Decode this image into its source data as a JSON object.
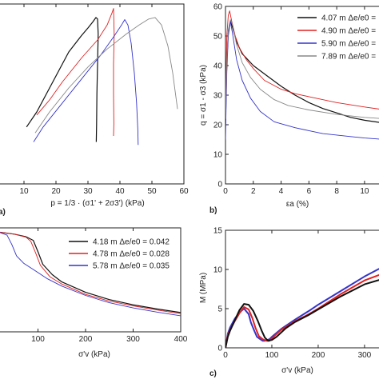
{
  "chart_data": [
    {
      "id": "a",
      "type": "line",
      "panel_label": "a)",
      "xlabel": "p = 1/3 · (σ1' + 2σ3') (kPa)",
      "ylabel": "",
      "xticks": [
        10,
        20,
        30,
        40,
        50,
        60
      ],
      "yticks": [],
      "xlim": [
        0,
        60
      ],
      "ylim": [
        0,
        60
      ],
      "grid": false,
      "series": [
        {
          "color": "#111111",
          "x": [
            10.8,
            14,
            18,
            20,
            24,
            28,
            30,
            31.5,
            32.5,
            33,
            33.2,
            33,
            32.8,
            32.7,
            32.6
          ],
          "y": [
            19,
            24,
            32,
            36,
            44,
            49.5,
            52,
            54,
            55.5,
            55,
            50,
            40,
            30,
            20,
            14
          ]
        },
        {
          "color": "#e02020",
          "x": [
            14,
            18,
            22,
            28,
            33,
            36,
            37.5,
            38,
            38.2,
            38,
            38,
            38.1,
            38
          ],
          "y": [
            23,
            28,
            34,
            42,
            48,
            53,
            57,
            58.5,
            50,
            40,
            30,
            20,
            16
          ]
        },
        {
          "color": "#3333cc",
          "x": [
            13,
            16,
            22,
            28,
            34,
            38,
            40.5,
            41.5,
            42.5,
            43.5,
            44.5,
            45.2,
            45.6,
            45.7
          ],
          "y": [
            14,
            19,
            27,
            35,
            43,
            49,
            53,
            54.8,
            53,
            47,
            37,
            27,
            18,
            13
          ]
        },
        {
          "color": "#888888",
          "x": [
            13.5,
            18,
            24,
            30,
            36,
            42,
            46,
            49,
            51,
            53,
            55,
            56.5,
            57.5,
            58
          ],
          "y": [
            17,
            24,
            32,
            39,
            45,
            50,
            53,
            55,
            55.5,
            53,
            46,
            37,
            29,
            25
          ]
        }
      ]
    },
    {
      "id": "b",
      "type": "line",
      "panel_label": "b)",
      "xlabel": "εa (%)",
      "ylabel": "q = σ1 - σ3 (kPa)",
      "xticks": [
        0,
        2,
        4,
        6,
        8,
        10
      ],
      "yticks": [
        0,
        10,
        20,
        30,
        40,
        50,
        60
      ],
      "xlim": [
        0,
        11.5
      ],
      "ylim": [
        0,
        60
      ],
      "grid": false,
      "legend": "top-right",
      "series": [
        {
          "name": "4.07 m Δe/e0 =",
          "color": "#111111",
          "x": [
            0,
            0.1,
            0.2,
            0.35,
            0.5,
            0.8,
            1.2,
            2,
            3,
            4,
            5,
            6,
            7,
            8,
            9,
            10,
            11.5
          ],
          "y": [
            20,
            42,
            51,
            55,
            53,
            48,
            44,
            40,
            36.5,
            33,
            30,
            27.5,
            25.5,
            24,
            22.5,
            21.5,
            20.5
          ]
        },
        {
          "name": "4.90 m Δe/e0 =",
          "color": "#e02020",
          "x": [
            0,
            0.1,
            0.2,
            0.3,
            0.45,
            0.7,
            1,
            1.5,
            2,
            2.8,
            4,
            5,
            6,
            8,
            10,
            11.5
          ],
          "y": [
            28,
            50,
            57,
            58.5,
            55,
            50,
            46,
            42,
            39,
            35,
            32,
            30.5,
            29.5,
            27.5,
            26,
            25
          ]
        },
        {
          "name": "5.90 m Δe/e0 =",
          "color": "#3333cc",
          "x": [
            0,
            0.1,
            0.2,
            0.35,
            0.5,
            0.8,
            1.2,
            1.8,
            2.5,
            3.5,
            5,
            6,
            7,
            8,
            9,
            10,
            11.5
          ],
          "y": [
            15,
            38,
            50,
            55,
            51,
            42,
            35,
            29,
            24.5,
            21,
            19,
            18,
            17,
            16.5,
            16,
            15.5,
            15
          ]
        },
        {
          "name": "7.89 m Δe/e0 =",
          "color": "#888888",
          "x": [
            0,
            0.1,
            0.2,
            0.35,
            0.5,
            0.8,
            1.2,
            1.8,
            2.5,
            3.5,
            4.5,
            6,
            8,
            10,
            11.5
          ],
          "y": [
            22,
            42,
            52,
            55.5,
            54,
            47,
            41,
            36,
            32,
            28.5,
            26.5,
            25,
            23.5,
            22.5,
            22
          ]
        }
      ]
    },
    {
      "id": "c",
      "type": "line",
      "panel_label": "",
      "xlabel": "σ'v (kPa)",
      "ylabel": "",
      "xticks": [
        100,
        200,
        300,
        400
      ],
      "yticks": [],
      "xlim": [
        0,
        400
      ],
      "ylim": [
        0,
        1
      ],
      "grid": false,
      "legend": "top-right",
      "series": [
        {
          "name": "4.18 m Δe/e0 = 0.042",
          "color": "#111111",
          "x": [
            0,
            25,
            50,
            75,
            90,
            100,
            110,
            130,
            150,
            200,
            250,
            300,
            350,
            400
          ],
          "y": [
            0.97,
            0.955,
            0.94,
            0.915,
            0.88,
            0.77,
            0.65,
            0.55,
            0.48,
            0.38,
            0.31,
            0.26,
            0.22,
            0.185
          ]
        },
        {
          "name": "4.78 m Δe/e0 = 0.028",
          "color": "#e02020",
          "x": [
            0,
            25,
            50,
            75,
            85,
            95,
            105,
            125,
            150,
            200,
            250,
            300,
            350,
            400
          ],
          "y": [
            0.97,
            0.955,
            0.94,
            0.91,
            0.87,
            0.76,
            0.64,
            0.53,
            0.46,
            0.36,
            0.295,
            0.25,
            0.21,
            0.175
          ]
        },
        {
          "name": "5.78 m Δe/e0 = 0.035",
          "color": "#3333cc",
          "x": [
            0,
            20,
            35,
            45,
            55,
            70,
            90,
            100,
            120,
            150,
            200,
            250,
            300,
            350,
            400
          ],
          "y": [
            0.97,
            0.955,
            0.93,
            0.84,
            0.73,
            0.66,
            0.6,
            0.57,
            0.51,
            0.44,
            0.35,
            0.28,
            0.23,
            0.19,
            0.155
          ]
        }
      ]
    },
    {
      "id": "d",
      "type": "line",
      "panel_label": "c)",
      "xlabel": "σ'v (kPa)",
      "ylabel": "M (MPa)",
      "xticks": [
        0,
        100,
        200,
        300
      ],
      "yticks": [
        0,
        5,
        10,
        15
      ],
      "xlim": [
        0,
        345
      ],
      "ylim": [
        0,
        15
      ],
      "grid": false,
      "series": [
        {
          "color": "#3333cc",
          "x": [
            0,
            5,
            10,
            20,
            30,
            40,
            50,
            55,
            62,
            68,
            75,
            80,
            85,
            95,
            100,
            120,
            150,
            180,
            200,
            250,
            300,
            345
          ],
          "y": [
            0,
            1.8,
            2.6,
            3.7,
            4.5,
            5,
            4.3,
            3.2,
            2.2,
            1.4,
            1.1,
            0.9,
            0.9,
            1.1,
            1.4,
            2.4,
            3.6,
            4.7,
            5.5,
            7.3,
            9.1,
            10.5
          ]
        },
        {
          "color": "#e02020",
          "x": [
            0,
            5,
            10,
            20,
            30,
            40,
            50,
            58,
            65,
            72,
            80,
            88,
            95,
            100,
            120,
            150,
            180,
            200,
            250,
            300,
            345
          ],
          "y": [
            0,
            1.6,
            2.3,
            3.4,
            4.4,
            5.2,
            4.9,
            3.8,
            2.5,
            1.5,
            1.1,
            0.9,
            0.9,
            1.2,
            2.3,
            3.4,
            4.3,
            5,
            6.9,
            8.6,
            9.6
          ]
        },
        {
          "color": "#111111",
          "x": [
            0,
            5,
            10,
            20,
            30,
            40,
            50,
            60,
            70,
            78,
            85,
            92,
            100,
            110,
            130,
            150,
            180,
            200,
            250,
            300,
            345
          ],
          "y": [
            0,
            1.4,
            2.2,
            3.5,
            4.8,
            5.6,
            5.5,
            4.7,
            3.4,
            2.2,
            1.3,
            0.9,
            1.0,
            1.4,
            2.5,
            3.3,
            4.2,
            4.9,
            6.6,
            8.1,
            8.9
          ]
        }
      ]
    }
  ]
}
